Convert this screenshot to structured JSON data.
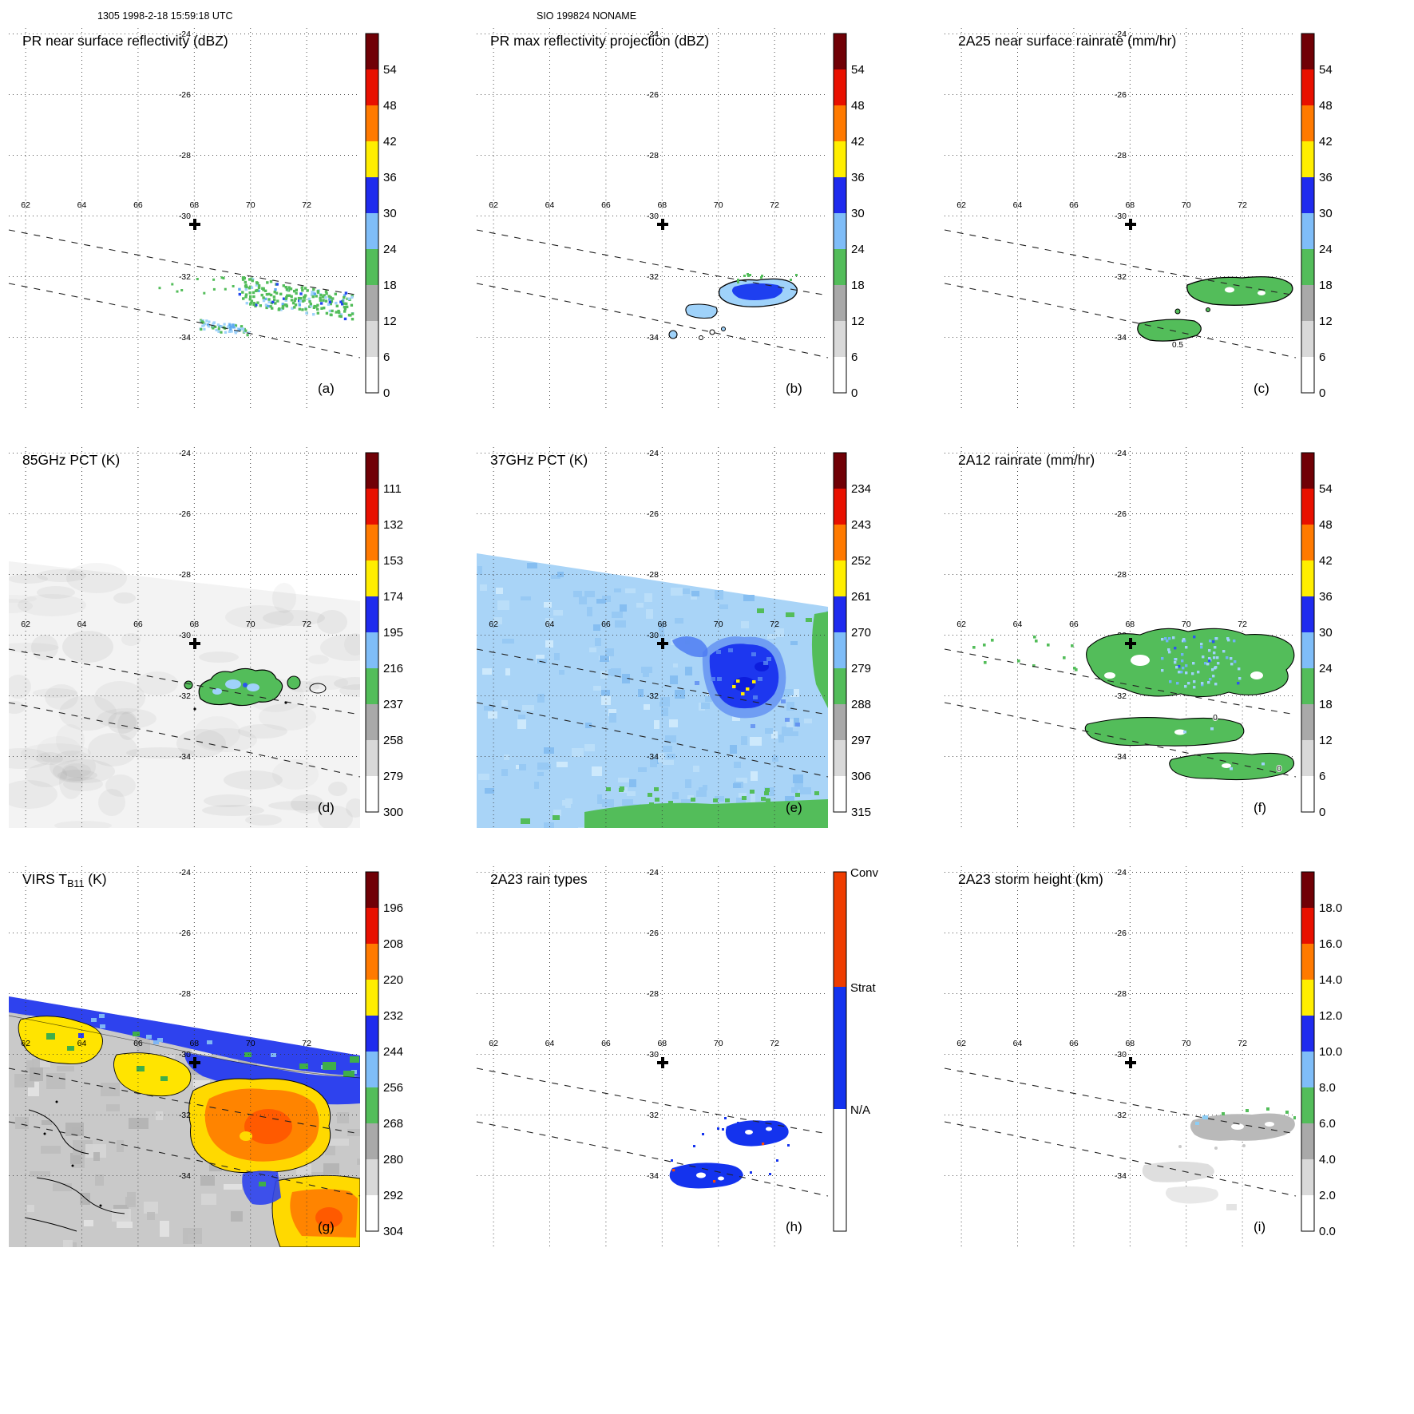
{
  "header": {
    "left": "1305 1998-2-18 15:59:18 UTC",
    "center": "SIO 199824 NONAME"
  },
  "axes": {
    "lon_ticks": [
      "62",
      "64",
      "66",
      "68",
      "70",
      "72"
    ],
    "lon_vals": [
      62,
      64,
      66,
      68,
      70,
      72
    ],
    "lat_ticks": [
      "-24",
      "-26",
      "-28",
      "-30",
      "-32",
      "-34"
    ],
    "lat_vals": [
      -24,
      -26,
      -28,
      -30,
      -32,
      -34
    ]
  },
  "colorbar_colors": [
    "#700006",
    "#e81000",
    "#ff7a00",
    "#ffee00",
    "#1f2bee",
    "#7fbdf8",
    "#53bd5a",
    "#a9a9a9",
    "#d9d9d9",
    "#ffffff"
  ],
  "rain_type_colors": [
    "#ee3c00",
    "#1433ee",
    "#ffffff"
  ],
  "panels": [
    {
      "letter": "(a)",
      "title": "PR near surface reflectivity (dBZ)",
      "cb_type": "continuous",
      "cb_labels": [
        "54",
        "48",
        "42",
        "36",
        "30",
        "24",
        "18",
        "12",
        "6",
        "0"
      ],
      "annotations": []
    },
    {
      "letter": "(b)",
      "title": "PR max reflectivity projection (dBZ)",
      "cb_type": "continuous",
      "cb_labels": [
        "54",
        "48",
        "42",
        "36",
        "30",
        "24",
        "18",
        "12",
        "6",
        "0"
      ],
      "annotations": []
    },
    {
      "letter": "(c)",
      "title": "2A25 near surface rainrate (mm/hr)",
      "cb_type": "continuous",
      "cb_labels": [
        "54",
        "48",
        "42",
        "36",
        "30",
        "24",
        "18",
        "12",
        "6",
        "0"
      ],
      "annotations": [
        {
          "text": "0.5"
        }
      ]
    },
    {
      "letter": "(d)",
      "title": "85GHz PCT (K)",
      "cb_type": "continuous",
      "cb_labels": [
        "111",
        "132",
        "153",
        "174",
        "195",
        "216",
        "237",
        "258",
        "279",
        "300"
      ],
      "annotations": []
    },
    {
      "letter": "(e)",
      "title": "37GHz PCT (K)",
      "cb_type": "continuous",
      "cb_labels": [
        "234",
        "243",
        "252",
        "261",
        "270",
        "279",
        "288",
        "297",
        "306",
        "315"
      ],
      "annotations": []
    },
    {
      "letter": "(f)",
      "title": "2A12 rainrate (mm/hr)",
      "cb_type": "continuous",
      "cb_labels": [
        "54",
        "48",
        "42",
        "36",
        "30",
        "24",
        "18",
        "12",
        "6",
        "0"
      ],
      "annotations": [
        {
          "text": "0"
        },
        {
          "text": "0"
        }
      ]
    },
    {
      "letter": "(g)",
      "title_pre": "VIRS T",
      "title_sub": "B11",
      "title_post": " (K)",
      "cb_type": "continuous",
      "cb_labels": [
        "196",
        "208",
        "220",
        "232",
        "244",
        "256",
        "268",
        "280",
        "292",
        "304"
      ],
      "annotations": []
    },
    {
      "letter": "(h)",
      "title": "2A23 rain types",
      "cb_type": "categorical",
      "cb_labels": [
        "Conv",
        "Strat",
        "N/A"
      ],
      "annotations": []
    },
    {
      "letter": "(i)",
      "title": "2A23 storm height (km)",
      "cb_type": "continuous",
      "cb_labels": [
        "18.0",
        "16.0",
        "14.0",
        "12.0",
        "10.0",
        "8.0",
        "6.0",
        "4.0",
        "2.0",
        "0.0"
      ],
      "annotations": []
    }
  ],
  "chart_data": {
    "type": "heatmap",
    "layout": "3x3 satellite swath map panels, shared lat/lon graticule",
    "lon_ticks": [
      62,
      64,
      66,
      68,
      70,
      72
    ],
    "lat_ticks": [
      -24,
      -26,
      -28,
      -30,
      -32,
      -34
    ],
    "storm_marker": {
      "lon": 68,
      "lat": -30.3
    },
    "panels": [
      {
        "label": "a",
        "title": "PR near surface reflectivity (dBZ)",
        "colorbar_ticks": [
          54,
          48,
          42,
          36,
          30,
          24,
          18,
          12,
          6,
          0
        ]
      },
      {
        "label": "b",
        "title": "PR max reflectivity projection (dBZ)",
        "colorbar_ticks": [
          54,
          48,
          42,
          36,
          30,
          24,
          18,
          12,
          6,
          0
        ]
      },
      {
        "label": "c",
        "title": "2A25 near surface rainrate (mm/hr)",
        "colorbar_ticks": [
          54,
          48,
          42,
          36,
          30,
          24,
          18,
          12,
          6,
          0
        ]
      },
      {
        "label": "d",
        "title": "85GHz PCT (K)",
        "colorbar_ticks": [
          111,
          132,
          153,
          174,
          195,
          216,
          237,
          258,
          279,
          300
        ]
      },
      {
        "label": "e",
        "title": "37GHz PCT (K)",
        "colorbar_ticks": [
          234,
          243,
          252,
          261,
          270,
          279,
          288,
          297,
          306,
          315
        ]
      },
      {
        "label": "f",
        "title": "2A12 rainrate (mm/hr)",
        "colorbar_ticks": [
          54,
          48,
          42,
          36,
          30,
          24,
          18,
          12,
          6,
          0
        ]
      },
      {
        "label": "g",
        "title": "VIRS TB11 (K)",
        "colorbar_ticks": [
          196,
          208,
          220,
          232,
          244,
          256,
          268,
          280,
          292,
          304
        ]
      },
      {
        "label": "h",
        "title": "2A23 rain types",
        "categories": [
          "Conv",
          "Strat",
          "N/A"
        ]
      },
      {
        "label": "i",
        "title": "2A23 storm height (km)",
        "colorbar_ticks": [
          18.0,
          16.0,
          14.0,
          12.0,
          10.0,
          8.0,
          6.0,
          4.0,
          2.0,
          0.0
        ]
      }
    ]
  }
}
